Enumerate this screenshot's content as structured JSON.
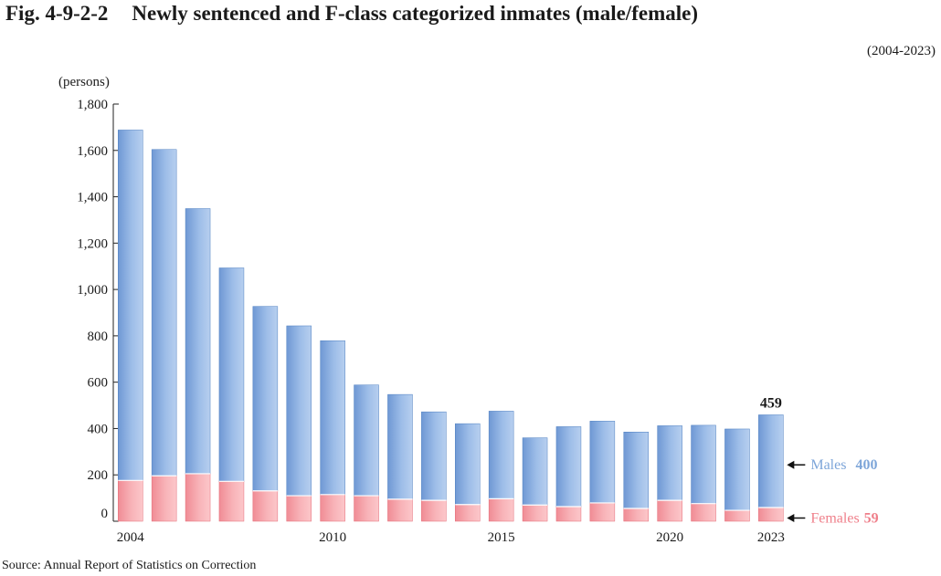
{
  "figure": {
    "number": "Fig. 4-9-2-2",
    "title": "Newly sentenced and F-class categorized inmates (male/female)",
    "period": "(2004-2023)",
    "unit": "(persons)",
    "source": "Source: Annual Report of Statistics on Correction"
  },
  "chart_data": {
    "type": "bar",
    "stacked": true,
    "categories": [
      "2004",
      "2005",
      "2006",
      "2007",
      "2008",
      "2009",
      "2010",
      "2011",
      "2012",
      "2013",
      "2014",
      "2015",
      "2016",
      "2017",
      "2018",
      "2019",
      "2020",
      "2021",
      "2022",
      "2023"
    ],
    "x_tick_labels": [
      "2004",
      "2010",
      "2015",
      "2020",
      "2023"
    ],
    "series": [
      {
        "name": "Females",
        "color": "#f4a0a6",
        "values": [
          176,
          196,
          205,
          172,
          131,
          110,
          115,
          110,
          95,
          90,
          72,
          97,
          70,
          63,
          79,
          55,
          90,
          76,
          47,
          59
        ]
      },
      {
        "name": "Males",
        "color": "#86aee0",
        "values": [
          1512,
          1408,
          1144,
          921,
          796,
          733,
          664,
          478,
          452,
          382,
          349,
          378,
          290,
          345,
          353,
          330,
          322,
          338,
          351,
          400
        ]
      }
    ],
    "ylim": [
      0,
      1800
    ],
    "y_ticks": [
      0,
      200,
      400,
      600,
      800,
      1000,
      1200,
      1400,
      1600,
      1800
    ],
    "y_tick_labels": [
      "0",
      "200",
      "400",
      "600",
      "800",
      "1,000",
      "1,200",
      "1,400",
      "1,600",
      "1,800"
    ],
    "annotations": [
      {
        "text": "459",
        "category": "2023",
        "value": 459
      }
    ],
    "legend": [
      {
        "label": "Males",
        "value": "400",
        "color": "#7ea6d9"
      },
      {
        "label": "Females",
        "value": "59",
        "color": "#ef7f8a"
      }
    ],
    "legend_position": "right, at last bar",
    "grid": false
  }
}
